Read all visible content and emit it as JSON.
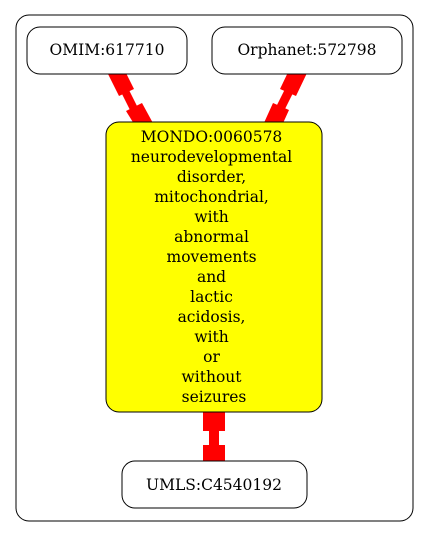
{
  "diagram": {
    "type": "ontology-mapping-graph",
    "colors": {
      "cluster_border": "#000000",
      "node_fill": "#ffffff",
      "center_fill": "#ffff00",
      "edge": "#ff0000"
    },
    "nodes": {
      "omim": {
        "label": "OMIM:617710"
      },
      "orphanet": {
        "label": "Orphanet:572798"
      },
      "mondo": {
        "lines": [
          "MONDO:0060578",
          "neurodevelopmental",
          "disorder,",
          "mitochondrial,",
          "with",
          "abnormal",
          "movements",
          "and",
          "lactic",
          "acidosis,",
          "with",
          "or",
          "without",
          "seizures"
        ]
      },
      "umls": {
        "label": "UMLS:C4540192"
      }
    },
    "edges": [
      {
        "from": "OMIM:617710",
        "to": "MONDO:0060578"
      },
      {
        "from": "Orphanet:572798",
        "to": "MONDO:0060578"
      },
      {
        "from": "MONDO:0060578",
        "to": "UMLS:C4540192"
      }
    ]
  }
}
